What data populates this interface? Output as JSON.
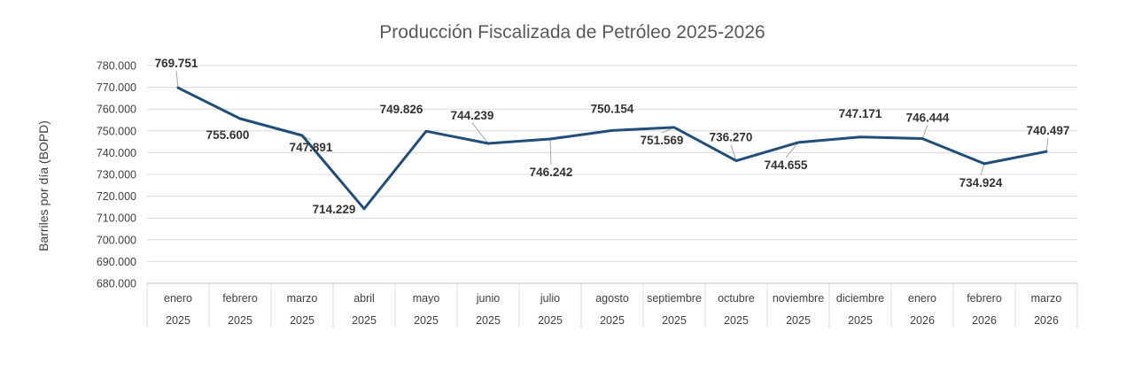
{
  "chart_data": {
    "type": "line",
    "title": "Producción Fiscalizada de Petróleo 2025-2026",
    "ylabel": "Barriles por día (BOPD)",
    "xlabel": "",
    "ylim": [
      680000,
      780000
    ],
    "ytick_step": 10000,
    "yticks": [
      "680.000",
      "690.000",
      "700.000",
      "710.000",
      "720.000",
      "730.000",
      "740.000",
      "750.000",
      "760.000",
      "770.000",
      "780.000"
    ],
    "grid": true,
    "legend": "none",
    "line_color": "#1F4E79",
    "categories": [
      {
        "month": "enero",
        "year": "2025"
      },
      {
        "month": "febrero",
        "year": "2025"
      },
      {
        "month": "marzo",
        "year": "2025"
      },
      {
        "month": "abril",
        "year": "2025"
      },
      {
        "month": "mayo",
        "year": "2025"
      },
      {
        "month": "junio",
        "year": "2025"
      },
      {
        "month": "julio",
        "year": "2025"
      },
      {
        "month": "agosto",
        "year": "2025"
      },
      {
        "month": "septiembre",
        "year": "2025"
      },
      {
        "month": "octubre",
        "year": "2025"
      },
      {
        "month": "noviembre",
        "year": "2025"
      },
      {
        "month": "diciembre",
        "year": "2025"
      },
      {
        "month": "enero",
        "year": "2026"
      },
      {
        "month": "febrero",
        "year": "2026"
      },
      {
        "month": "marzo",
        "year": "2026"
      }
    ],
    "values": [
      769751,
      755600,
      747891,
      714229,
      749826,
      744239,
      746242,
      750154,
      751569,
      736270,
      744655,
      747171,
      746444,
      734924,
      740497
    ],
    "data_labels": [
      "769.751",
      "755.600",
      "747.891",
      "714.229",
      "749.826",
      "744.239",
      "746.242",
      "750.154",
      "751.569",
      "736.270",
      "744.655",
      "747.171",
      "746.444",
      "734.924",
      "740.497"
    ]
  }
}
